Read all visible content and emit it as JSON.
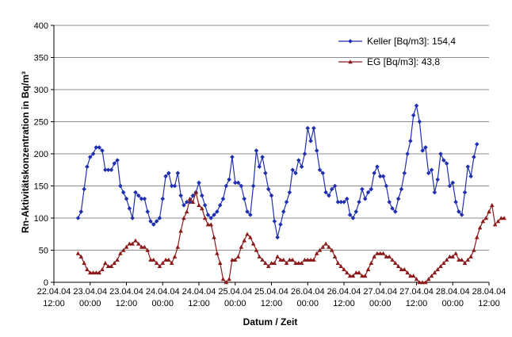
{
  "chart_data": {
    "type": "line",
    "title": "",
    "xlabel": "Datum / Zeit",
    "ylabel": "Rn-Aktivitätskonzentration in Bq/m³",
    "ylim": [
      0,
      400
    ],
    "yticks": [
      "0",
      "50",
      "100",
      "150",
      "200",
      "250",
      "300",
      "350",
      "400"
    ],
    "xlim_hours": [
      0,
      144
    ],
    "xticks": [
      {
        "date": "22.04.04",
        "time": "12:00"
      },
      {
        "date": "23.04.04",
        "time": "00:00"
      },
      {
        "date": "23.04.04",
        "time": "12:00"
      },
      {
        "date": "24.04.04",
        "time": "00:00"
      },
      {
        "date": "24.04.04",
        "time": "12:00"
      },
      {
        "date": "25.04.04",
        "time": "00:00"
      },
      {
        "date": "25.04.04",
        "time": "12:00"
      },
      {
        "date": "26.04.04",
        "time": "00:00"
      },
      {
        "date": "26.04.04",
        "time": "12:00"
      },
      {
        "date": "27.04.04",
        "time": "00:00"
      },
      {
        "date": "27.04.04",
        "time": "12:00"
      },
      {
        "date": "28.04.04",
        "time": "00:00"
      },
      {
        "date": "28.04.04",
        "time": "12:00"
      }
    ],
    "grid": "horizontal",
    "legend_position": "top-right",
    "series": [
      {
        "name": "Keller [Bq/m3]: 154,4",
        "color": "#1f2fb0",
        "marker": "diamond",
        "x_start_hour": 8,
        "x_step_hours": 1,
        "values": [
          100,
          110,
          145,
          180,
          195,
          200,
          210,
          210,
          205,
          175,
          175,
          175,
          185,
          190,
          150,
          140,
          130,
          115,
          100,
          140,
          135,
          130,
          130,
          110,
          95,
          90,
          95,
          100,
          130,
          165,
          170,
          150,
          150,
          170,
          135,
          120,
          125,
          125,
          135,
          140,
          155,
          135,
          120,
          105,
          100,
          105,
          110,
          120,
          130,
          150,
          160,
          195,
          155,
          155,
          150,
          130,
          110,
          105,
          150,
          205,
          180,
          195,
          170,
          145,
          135,
          95,
          70,
          90,
          110,
          125,
          140,
          175,
          170,
          190,
          180,
          200,
          240,
          220,
          240,
          205,
          175,
          170,
          140,
          135,
          145,
          150,
          125,
          125,
          125,
          130,
          105,
          100,
          110,
          125,
          145,
          130,
          140,
          145,
          170,
          180,
          165,
          165,
          150,
          125,
          115,
          110,
          130,
          145,
          170,
          200,
          220,
          260,
          275,
          250,
          205,
          210,
          170,
          175,
          140,
          160,
          200,
          190,
          185,
          150,
          155,
          125,
          110,
          105,
          140,
          180,
          165,
          195,
          215
        ]
      },
      {
        "name": "EG [Bq/m3]: 43,8",
        "color": "#8b1a1a",
        "marker": "triangle",
        "x_start_hour": 8,
        "x_step_hours": 1,
        "values": [
          45,
          40,
          30,
          20,
          15,
          15,
          15,
          15,
          20,
          30,
          25,
          25,
          30,
          35,
          45,
          50,
          55,
          60,
          60,
          65,
          60,
          55,
          55,
          50,
          35,
          35,
          30,
          25,
          30,
          35,
          35,
          30,
          40,
          55,
          80,
          100,
          110,
          130,
          125,
          140,
          120,
          115,
          100,
          90,
          90,
          70,
          45,
          30,
          5,
          0,
          5,
          35,
          35,
          40,
          55,
          65,
          75,
          70,
          60,
          50,
          40,
          35,
          30,
          25,
          30,
          30,
          40,
          35,
          35,
          30,
          35,
          35,
          30,
          30,
          30,
          35,
          35,
          35,
          35,
          45,
          50,
          55,
          60,
          55,
          50,
          40,
          30,
          25,
          20,
          15,
          10,
          10,
          15,
          15,
          10,
          10,
          20,
          30,
          40,
          45,
          45,
          45,
          40,
          40,
          35,
          30,
          25,
          20,
          20,
          15,
          10,
          10,
          5,
          0,
          0,
          0,
          5,
          10,
          15,
          20,
          25,
          30,
          35,
          40,
          40,
          45,
          35,
          35,
          30,
          35,
          40,
          50,
          70,
          85,
          95,
          100,
          110,
          120,
          90,
          95,
          100,
          100
        ]
      }
    ]
  }
}
